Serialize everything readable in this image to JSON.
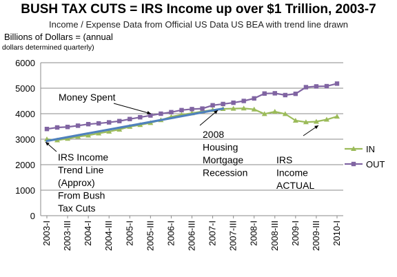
{
  "chart_data": {
    "type": "line",
    "title": "BUSH TAX CUTS = IRS Income up over $1 Trillion, 2003-7",
    "subtitle": "Income / Expense Data from Official US Data US BEA with trend line drawn",
    "ylabel_line1": "Billions of Dollars = (annual",
    "ylabel_line2": "dollars determined quarterly)",
    "ylim": [
      0,
      6000
    ],
    "yticks": [
      "0",
      "1000",
      "2000",
      "3000",
      "4000",
      "5000",
      "6000"
    ],
    "x_labels": [
      "2003-I",
      "2003-III",
      "2004-I",
      "2004-III",
      "2005-I",
      "2005-III",
      "2006-I",
      "2006-III",
      "2007-I",
      "2007-III",
      "2008-I",
      "2008-III",
      "2009-I",
      "2009-III",
      "2010-I"
    ],
    "num_points": 29,
    "legend_position": "right",
    "series": [
      {
        "name": "IN",
        "color": "#9BBB59",
        "marker": "triangle",
        "values": [
          3000,
          2960,
          3020,
          3100,
          3150,
          3230,
          3300,
          3380,
          3490,
          3560,
          3640,
          3750,
          3880,
          3960,
          4020,
          4090,
          4150,
          4190,
          4200,
          4210,
          4170,
          3990,
          4080,
          3990,
          3730,
          3670,
          3690,
          3770,
          3890
        ]
      },
      {
        "name": "OUT",
        "color": "#8064A2",
        "marker": "square",
        "values": [
          3400,
          3460,
          3480,
          3530,
          3590,
          3620,
          3660,
          3710,
          3790,
          3860,
          3930,
          4000,
          4060,
          4140,
          4180,
          4200,
          4330,
          4380,
          4430,
          4500,
          4600,
          4790,
          4800,
          4730,
          4780,
          5040,
          5070,
          5080,
          5180
        ]
      }
    ],
    "trend_line": {
      "color": "#4F81BD",
      "start": {
        "x_index": 0,
        "value": 2930
      },
      "end": {
        "x_index": 17,
        "value": 4200
      }
    },
    "annotations": {
      "money_spent": "Money Spent",
      "irs_trend": [
        "IRS Income",
        "Trend Line",
        "(Approx)",
        "From Bush",
        "Tax Cuts"
      ],
      "recession": [
        "2008",
        "Housing",
        "Mortgage",
        "Recession"
      ],
      "irs_actual": [
        "IRS",
        "Income",
        "ACTUAL"
      ]
    },
    "grid": true
  }
}
